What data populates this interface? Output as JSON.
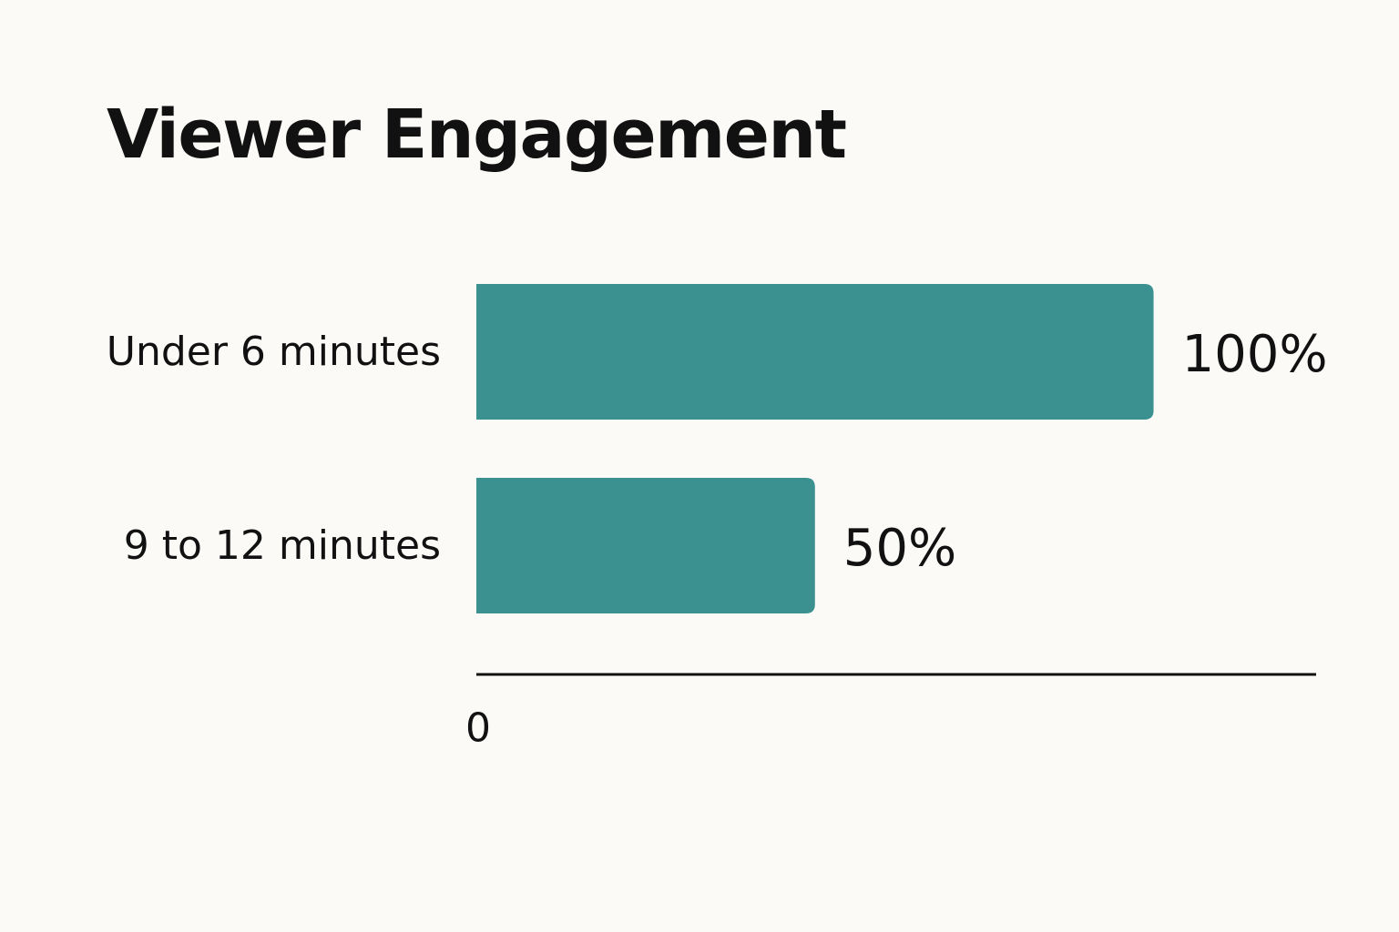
{
  "chart_data": {
    "type": "bar",
    "orientation": "horizontal",
    "title": "Viewer Engagement",
    "categories": [
      "Under 6 minutes",
      "9 to 12 minutes"
    ],
    "values": [
      100,
      50
    ],
    "value_labels": [
      "100%",
      "50%"
    ],
    "unit": "%",
    "xlim": [
      0,
      124
    ],
    "x_ticks": [
      "0"
    ],
    "grid": false,
    "legend": "none",
    "bar_color": "#3a9190",
    "axis_color": "#111111"
  }
}
